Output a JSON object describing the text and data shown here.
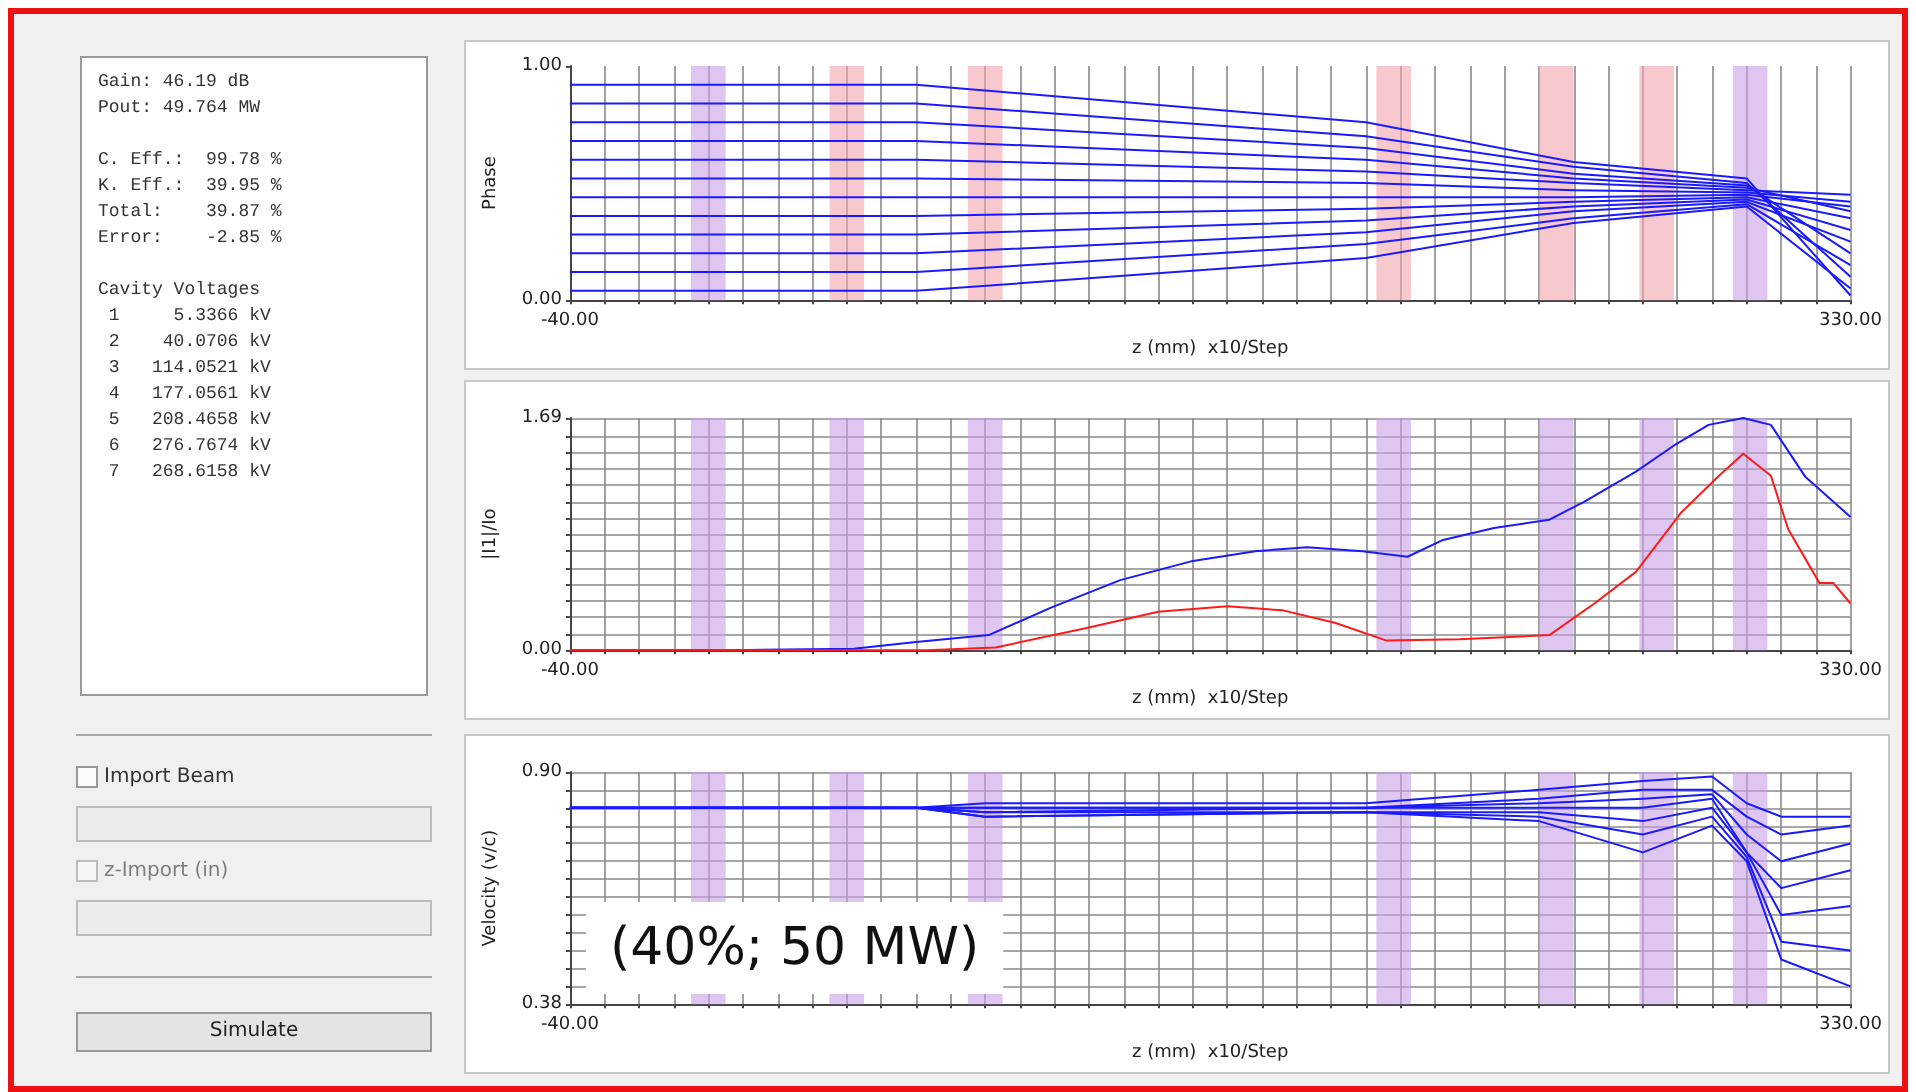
{
  "chart_data": [
    {
      "type": "other",
      "annotations": [
        "Gain: 46.19 dB",
        "Pout: 49.764 MW",
        "C. Eff.:  99.78 %",
        "K. Eff.:  39.95 %",
        "Total:    39.87 %",
        "Error:    -2.85 %",
        "Cavity Voltages",
        " 1     5.3366 kV",
        " 2    40.0706 kV",
        " 3   114.0521 kV",
        " 4   177.0561 kV",
        " 5   208.4658 kV",
        " 6   276.7674 kV",
        " 7   268.6158 kV",
        "Import Beam",
        "z-Import (in)",
        "Simulate"
      ]
    },
    {
      "type": "line",
      "xlabel": "z (mm)  x10/Step",
      "ylabel": "Phase",
      "xlim": [
        -40,
        330
      ],
      "ylim": [
        0,
        1
      ],
      "xticks": [
        {
          "value": -40,
          "label": "-40.00"
        },
        {
          "value": -30,
          "label": null
        },
        {
          "value": -20,
          "label": null
        },
        {
          "value": -10,
          "label": null
        },
        {
          "value": 0,
          "label": null
        },
        {
          "value": 10,
          "label": null
        },
        {
          "value": 20,
          "label": null
        },
        {
          "value": 30,
          "label": null
        },
        {
          "value": 40,
          "label": null
        },
        {
          "value": 50,
          "label": null
        },
        {
          "value": 60,
          "label": null
        },
        {
          "value": 70,
          "label": null
        },
        {
          "value": 80,
          "label": null
        },
        {
          "value": 90,
          "label": null
        },
        {
          "value": 100,
          "label": null
        },
        {
          "value": 110,
          "label": null
        },
        {
          "value": 120,
          "label": null
        },
        {
          "value": 130,
          "label": null
        },
        {
          "value": 140,
          "label": null
        },
        {
          "value": 150,
          "label": null
        },
        {
          "value": 160,
          "label": null
        },
        {
          "value": 170,
          "label": null
        },
        {
          "value": 180,
          "label": null
        },
        {
          "value": 190,
          "label": null
        },
        {
          "value": 200,
          "label": null
        },
        {
          "value": 210,
          "label": null
        },
        {
          "value": 220,
          "label": null
        },
        {
          "value": 230,
          "label": null
        },
        {
          "value": 240,
          "label": null
        },
        {
          "value": 250,
          "label": null
        },
        {
          "value": 260,
          "label": null
        },
        {
          "value": 270,
          "label": null
        },
        {
          "value": 280,
          "label": null
        },
        {
          "value": 290,
          "label": null
        },
        {
          "value": 300,
          "label": null
        },
        {
          "value": 310,
          "label": null
        },
        {
          "value": 320,
          "label": null
        },
        {
          "value": 330,
          "label": "330.00"
        }
      ],
      "yticks": [
        {
          "value": 0,
          "label": "0.00"
        },
        {
          "value": 1,
          "label": "1.00"
        }
      ],
      "grid": "x",
      "marker": "none",
      "x": [
        -40,
        60,
        190,
        250,
        300,
        330
      ],
      "series": [
        {
          "color": "#1a1aff",
          "values": [
            0.04,
            0.04,
            0.18,
            0.33,
            0.4,
            0.05
          ]
        },
        {
          "color": "#1a1aff",
          "values": [
            0.12,
            0.12,
            0.24,
            0.35,
            0.41,
            0.15
          ]
        },
        {
          "color": "#1a1aff",
          "values": [
            0.2,
            0.2,
            0.29,
            0.38,
            0.42,
            0.25
          ]
        },
        {
          "color": "#1a1aff",
          "values": [
            0.28,
            0.28,
            0.34,
            0.4,
            0.43,
            0.3
          ]
        },
        {
          "color": "#1a1aff",
          "values": [
            0.36,
            0.36,
            0.39,
            0.42,
            0.44,
            0.35
          ]
        },
        {
          "color": "#1a1aff",
          "values": [
            0.44,
            0.44,
            0.44,
            0.44,
            0.45,
            0.4
          ]
        },
        {
          "color": "#1a1aff",
          "values": [
            0.52,
            0.52,
            0.5,
            0.47,
            0.46,
            0.42
          ]
        },
        {
          "color": "#1a1aff",
          "values": [
            0.6,
            0.6,
            0.55,
            0.5,
            0.47,
            0.45
          ]
        },
        {
          "color": "#1a1aff",
          "values": [
            0.68,
            0.68,
            0.6,
            0.52,
            0.48,
            0.38
          ]
        },
        {
          "color": "#1a1aff",
          "values": [
            0.76,
            0.76,
            0.65,
            0.54,
            0.49,
            0.2
          ]
        },
        {
          "color": "#1a1aff",
          "values": [
            0.84,
            0.84,
            0.7,
            0.57,
            0.5,
            0.1
          ]
        },
        {
          "color": "#1a1aff",
          "values": [
            0.92,
            0.92,
            0.76,
            0.59,
            0.52,
            0.02
          ]
        }
      ],
      "bands": [
        {
          "axis": "x",
          "from": -5,
          "to": 5,
          "color": "#c9a0e8"
        },
        {
          "axis": "x",
          "from": 35,
          "to": 45,
          "color": "#f2a3ac"
        },
        {
          "axis": "x",
          "from": 75,
          "to": 85,
          "color": "#f2a3ac"
        },
        {
          "axis": "x",
          "from": 193,
          "to": 203,
          "color": "#f2a3ac"
        },
        {
          "axis": "x",
          "from": 240,
          "to": 250,
          "color": "#f2a3ac"
        },
        {
          "axis": "x",
          "from": 269,
          "to": 279,
          "color": "#f2a3ac"
        },
        {
          "axis": "x",
          "from": 296,
          "to": 306,
          "color": "#c9a0e8"
        }
      ]
    },
    {
      "type": "line",
      "xlabel": "z (mm)  x10/Step",
      "ylabel": "|I1|/Io",
      "xlim": [
        -40,
        330
      ],
      "ylim": [
        0,
        1.69
      ],
      "xticks": [
        {
          "value": -40,
          "label": "-40.00"
        },
        {
          "value": -30,
          "label": null
        },
        {
          "value": -20,
          "label": null
        },
        {
          "value": -10,
          "label": null
        },
        {
          "value": 0,
          "label": null
        },
        {
          "value": 10,
          "label": null
        },
        {
          "value": 20,
          "label": null
        },
        {
          "value": 30,
          "label": null
        },
        {
          "value": 40,
          "label": null
        },
        {
          "value": 50,
          "label": null
        },
        {
          "value": 60,
          "label": null
        },
        {
          "value": 70,
          "label": null
        },
        {
          "value": 80,
          "label": null
        },
        {
          "value": 90,
          "label": null
        },
        {
          "value": 100,
          "label": null
        },
        {
          "value": 110,
          "label": null
        },
        {
          "value": 120,
          "label": null
        },
        {
          "value": 130,
          "label": null
        },
        {
          "value": 140,
          "label": null
        },
        {
          "value": 150,
          "label": null
        },
        {
          "value": 160,
          "label": null
        },
        {
          "value": 170,
          "label": null
        },
        {
          "value": 180,
          "label": null
        },
        {
          "value": 190,
          "label": null
        },
        {
          "value": 200,
          "label": null
        },
        {
          "value": 210,
          "label": null
        },
        {
          "value": 220,
          "label": null
        },
        {
          "value": 230,
          "label": null
        },
        {
          "value": 240,
          "label": null
        },
        {
          "value": 250,
          "label": null
        },
        {
          "value": 260,
          "label": null
        },
        {
          "value": 270,
          "label": null
        },
        {
          "value": 280,
          "label": null
        },
        {
          "value": 290,
          "label": null
        },
        {
          "value": 300,
          "label": null
        },
        {
          "value": 310,
          "label": null
        },
        {
          "value": 320,
          "label": null
        },
        {
          "value": 330,
          "label": "330.00"
        }
      ],
      "yticks": [
        {
          "value": 0,
          "label": "0.00"
        },
        {
          "value": 0.12,
          "label": null
        },
        {
          "value": 0.24,
          "label": null
        },
        {
          "value": 0.36,
          "label": null
        },
        {
          "value": 0.48,
          "label": null
        },
        {
          "value": 0.6,
          "label": null
        },
        {
          "value": 0.72,
          "label": null
        },
        {
          "value": 0.84,
          "label": null
        },
        {
          "value": 0.96,
          "label": null
        },
        {
          "value": 1.08,
          "label": null
        },
        {
          "value": 1.2,
          "label": null
        },
        {
          "value": 1.32,
          "label": null
        },
        {
          "value": 1.44,
          "label": null
        },
        {
          "value": 1.56,
          "label": null
        },
        {
          "value": 1.69,
          "label": "1.69"
        }
      ],
      "grid": true,
      "marker": "none",
      "series": [
        {
          "color": "#1a1aff",
          "x": [
            -40,
            6,
            42,
            60,
            81,
            99,
            119,
            140,
            158,
            173,
            189,
            202,
            212,
            227,
            243,
            253,
            268,
            279,
            289,
            299,
            307,
            317,
            330
          ],
          "values": [
            0,
            0,
            0.01,
            0.06,
            0.11,
            0.31,
            0.51,
            0.65,
            0.72,
            0.75,
            0.72,
            0.68,
            0.8,
            0.89,
            0.95,
            1.08,
            1.3,
            1.49,
            1.64,
            1.69,
            1.64,
            1.26,
            0.97
          ]
        },
        {
          "color": "#ff1a1a",
          "x": [
            -40,
            63,
            83,
            109,
            130,
            150,
            166,
            181,
            196,
            217,
            243,
            256,
            268,
            281,
            292,
            299,
            307,
            312,
            321,
            325,
            330
          ],
          "values": [
            0,
            0,
            0.02,
            0.16,
            0.28,
            0.32,
            0.29,
            0.2,
            0.07,
            0.08,
            0.11,
            0.34,
            0.57,
            1.0,
            1.27,
            1.43,
            1.27,
            0.88,
            0.49,
            0.49,
            0.34
          ]
        }
      ],
      "bands": [
        {
          "axis": "x",
          "from": -5,
          "to": 5,
          "color": "#c9a0e8"
        },
        {
          "axis": "x",
          "from": 35,
          "to": 45,
          "color": "#c9a0e8"
        },
        {
          "axis": "x",
          "from": 75,
          "to": 85,
          "color": "#c9a0e8"
        },
        {
          "axis": "x",
          "from": 193,
          "to": 203,
          "color": "#c9a0e8"
        },
        {
          "axis": "x",
          "from": 240,
          "to": 250,
          "color": "#c9a0e8"
        },
        {
          "axis": "x",
          "from": 269,
          "to": 279,
          "color": "#c9a0e8"
        },
        {
          "axis": "x",
          "from": 296,
          "to": 306,
          "color": "#c9a0e8"
        }
      ]
    },
    {
      "type": "line",
      "xlabel": "z (mm)  x10/Step",
      "ylabel": "Velocity (v/c)",
      "xlim": [
        -40,
        330
      ],
      "ylim": [
        0.38,
        0.9
      ],
      "xticks": [
        {
          "value": -40,
          "label": "-40.00"
        },
        {
          "value": -30,
          "label": null
        },
        {
          "value": -20,
          "label": null
        },
        {
          "value": -10,
          "label": null
        },
        {
          "value": 0,
          "label": null
        },
        {
          "value": 10,
          "label": null
        },
        {
          "value": 20,
          "label": null
        },
        {
          "value": 30,
          "label": null
        },
        {
          "value": 40,
          "label": null
        },
        {
          "value": 50,
          "label": null
        },
        {
          "value": 60,
          "label": null
        },
        {
          "value": 70,
          "label": null
        },
        {
          "value": 80,
          "label": null
        },
        {
          "value": 90,
          "label": null
        },
        {
          "value": 100,
          "label": null
        },
        {
          "value": 110,
          "label": null
        },
        {
          "value": 120,
          "label": null
        },
        {
          "value": 130,
          "label": null
        },
        {
          "value": 140,
          "label": null
        },
        {
          "value": 150,
          "label": null
        },
        {
          "value": 160,
          "label": null
        },
        {
          "value": 170,
          "label": null
        },
        {
          "value": 180,
          "label": null
        },
        {
          "value": 190,
          "label": null
        },
        {
          "value": 200,
          "label": null
        },
        {
          "value": 210,
          "label": null
        },
        {
          "value": 220,
          "label": null
        },
        {
          "value": 230,
          "label": null
        },
        {
          "value": 240,
          "label": null
        },
        {
          "value": 250,
          "label": null
        },
        {
          "value": 260,
          "label": null
        },
        {
          "value": 270,
          "label": null
        },
        {
          "value": 280,
          "label": null
        },
        {
          "value": 290,
          "label": null
        },
        {
          "value": 300,
          "label": null
        },
        {
          "value": 310,
          "label": null
        },
        {
          "value": 320,
          "label": null
        },
        {
          "value": 330,
          "label": "330.00"
        }
      ],
      "yticks": [
        {
          "value": 0.38,
          "label": "0.38"
        },
        {
          "value": 0.42,
          "label": null
        },
        {
          "value": 0.46,
          "label": null
        },
        {
          "value": 0.5,
          "label": null
        },
        {
          "value": 0.54,
          "label": null
        },
        {
          "value": 0.58,
          "label": null
        },
        {
          "value": 0.62,
          "label": null
        },
        {
          "value": 0.66,
          "label": null
        },
        {
          "value": 0.7,
          "label": null
        },
        {
          "value": 0.74,
          "label": null
        },
        {
          "value": 0.78,
          "label": null
        },
        {
          "value": 0.82,
          "label": null
        },
        {
          "value": 0.86,
          "label": null
        },
        {
          "value": 0.9,
          "label": "0.90"
        }
      ],
      "grid": true,
      "marker": "none",
      "x": [
        -40,
        60,
        80,
        190,
        240,
        270,
        290,
        300,
        310,
        330
      ],
      "series": [
        {
          "color": "#1a1aff",
          "values": [
            0.82,
            0.82,
            0.83,
            0.83,
            0.86,
            0.88,
            0.89,
            0.83,
            0.8,
            0.8
          ]
        },
        {
          "color": "#1a1aff",
          "values": [
            0.82,
            0.82,
            0.82,
            0.82,
            0.84,
            0.86,
            0.86,
            0.8,
            0.76,
            0.78
          ]
        },
        {
          "color": "#1a1aff",
          "values": [
            0.82,
            0.82,
            0.82,
            0.82,
            0.83,
            0.84,
            0.85,
            0.76,
            0.7,
            0.74
          ]
        },
        {
          "color": "#1a1aff",
          "values": [
            0.82,
            0.82,
            0.81,
            0.82,
            0.82,
            0.82,
            0.84,
            0.72,
            0.64,
            0.68
          ]
        },
        {
          "color": "#1a1aff",
          "values": [
            0.82,
            0.82,
            0.81,
            0.81,
            0.81,
            0.79,
            0.82,
            0.72,
            0.58,
            0.6
          ]
        },
        {
          "color": "#1a1aff",
          "values": [
            0.82,
            0.82,
            0.8,
            0.81,
            0.8,
            0.76,
            0.8,
            0.71,
            0.52,
            0.5
          ]
        },
        {
          "color": "#1a1aff",
          "values": [
            0.82,
            0.82,
            0.8,
            0.81,
            0.79,
            0.72,
            0.78,
            0.7,
            0.48,
            0.42
          ]
        }
      ],
      "bands": [
        {
          "axis": "x",
          "from": -5,
          "to": 5,
          "color": "#c9a0e8"
        },
        {
          "axis": "x",
          "from": 35,
          "to": 45,
          "color": "#c9a0e8"
        },
        {
          "axis": "x",
          "from": 75,
          "to": 85,
          "color": "#c9a0e8"
        },
        {
          "axis": "x",
          "from": 193,
          "to": 203,
          "color": "#c9a0e8"
        },
        {
          "axis": "x",
          "from": 240,
          "to": 250,
          "color": "#c9a0e8"
        },
        {
          "axis": "x",
          "from": 269,
          "to": 279,
          "color": "#c9a0e8"
        },
        {
          "axis": "x",
          "from": 296,
          "to": 306,
          "color": "#c9a0e8"
        }
      ],
      "annotations": [
        "(40%; 50 MW)"
      ]
    }
  ]
}
